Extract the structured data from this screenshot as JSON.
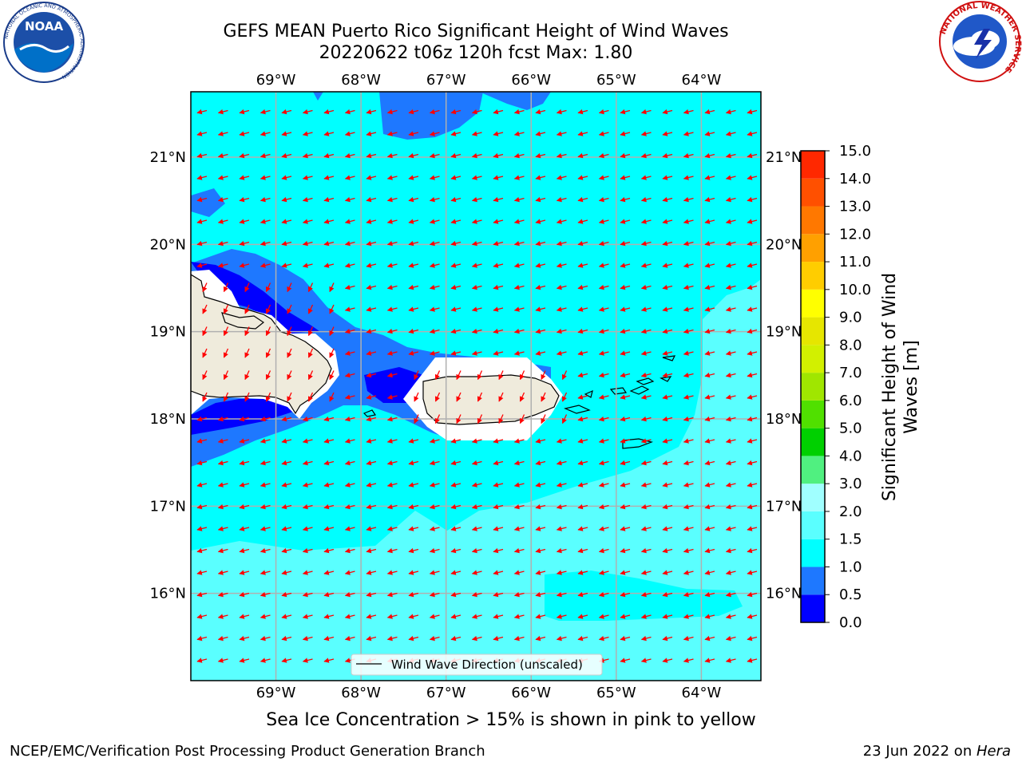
{
  "header": {
    "title_line1": "GEFS MEAN Puerto Rico Significant Height of Wind Waves",
    "title_line2": "20220622 t06z 120h fcst   Max: 1.80"
  },
  "logos": {
    "noaa": {
      "text": "NOAA",
      "ring_text": "NATIONAL OCEANIC AND ATMOSPHERIC ADMINISTRATION",
      "ring_bottom": "U.S. DEPARTMENT OF COMMERCE"
    },
    "nws": {
      "ring_text": "NATIONAL WEATHER SERVICE"
    }
  },
  "map": {
    "lon_labels": [
      "69°W",
      "68°W",
      "67°W",
      "66°W",
      "65°W",
      "64°W"
    ],
    "lat_labels": [
      "21°N",
      "20°N",
      "19°N",
      "18°N",
      "17°N",
      "16°N"
    ],
    "lon_values": [
      -69,
      -68,
      -67,
      -66,
      -65,
      -64
    ],
    "lat_values": [
      21,
      20,
      19,
      18,
      17,
      16
    ],
    "extent": {
      "lon_min": -70.0,
      "lon_max": -63.3,
      "lat_min": 15.0,
      "lat_max": 21.75
    },
    "land_color": "#efebdc",
    "ocean_base_color": "#00ffff",
    "arrow_color": "#ff0000",
    "legend_text": "Wind Wave Direction (unscaled)"
  },
  "colorbar": {
    "label": "Significant Height of Wind Waves [m]",
    "ticks": [
      "0.0",
      "0.5",
      "1.0",
      "1.5",
      "2.0",
      "3.0",
      "4.0",
      "5.0",
      "6.0",
      "7.0",
      "8.0",
      "9.0",
      "10.0",
      "11.0",
      "12.0",
      "13.0",
      "14.0",
      "15.0"
    ],
    "colors": [
      "#0000ff",
      "#1e78ff",
      "#00ffff",
      "#5affff",
      "#a0ffff",
      "#50f080",
      "#00d000",
      "#50e000",
      "#a0e600",
      "#d2f000",
      "#e6e600",
      "#ffff00",
      "#ffcd00",
      "#ffa000",
      "#ff7800",
      "#ff5000",
      "#ff2800",
      "#ff0000"
    ]
  },
  "caption": "Sea Ice Concentration > 15% is shown in pink to yellow",
  "footer": {
    "left": "NCEP/EMC/Verification Post Processing Product Generation Branch",
    "right_prefix": "23 Jun 2022 on ",
    "right_host": "Hera"
  }
}
